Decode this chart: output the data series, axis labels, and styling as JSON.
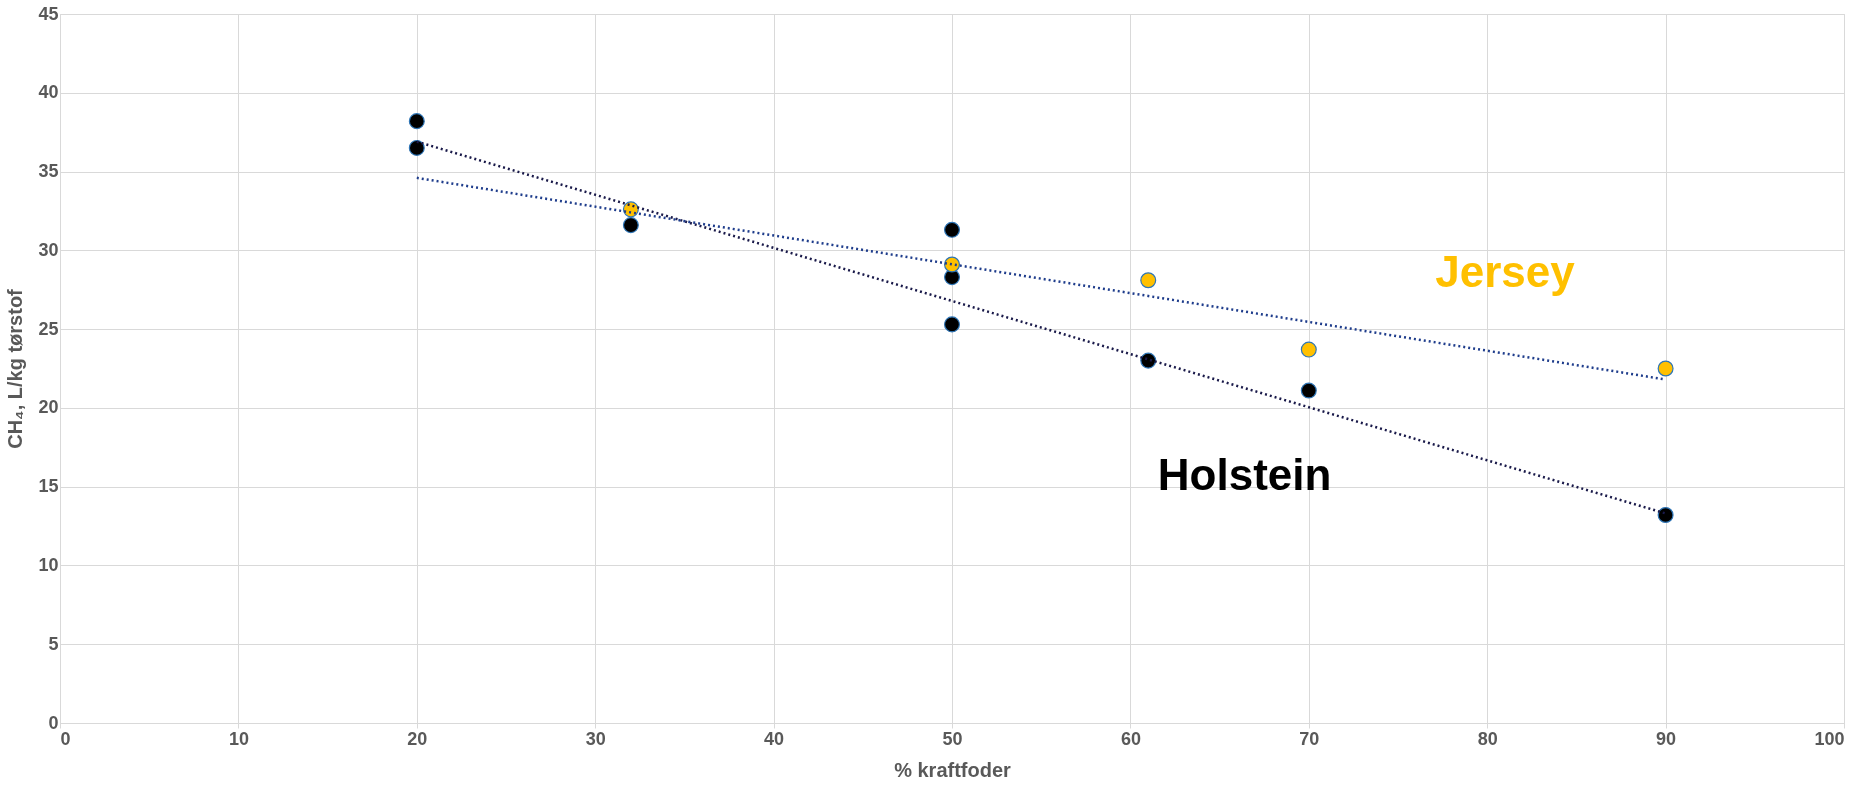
{
  "chart_data": {
    "type": "scatter",
    "xlabel": "% kraftfoder",
    "ylabel": "CH₄, L/kg tørstof",
    "xlim": [
      0,
      100
    ],
    "xticks": [
      0,
      10,
      20,
      30,
      40,
      50,
      60,
      70,
      80,
      90,
      100
    ],
    "ylim": [
      0,
      45
    ],
    "yticks": [
      0,
      5,
      10,
      15,
      20,
      25,
      30,
      35,
      40,
      45
    ],
    "grid": true,
    "marker": "circle",
    "series": [
      {
        "name": "Holstein",
        "color": "#000000",
        "x": [
          20,
          20,
          32,
          50,
          50,
          50,
          61,
          70,
          90
        ],
        "values": [
          38.2,
          36.5,
          31.6,
          31.3,
          28.3,
          25.3,
          23.0,
          21.1,
          13.2
        ]
      },
      {
        "name": "Jersey",
        "color": "#ffc000",
        "x": [
          32,
          50,
          61,
          70,
          90
        ],
        "values": [
          32.6,
          29.1,
          28.1,
          23.7,
          22.5
        ]
      },
      {
        "type": "line",
        "marker": "none",
        "color": "#1a1a4a",
        "line_style": "dotted",
        "x": [
          20,
          90
        ],
        "values": [
          36.9,
          13.3
        ]
      },
      {
        "type": "line",
        "marker": "none",
        "color": "#1f3d8c",
        "line_style": "dotted",
        "x": [
          20,
          90
        ],
        "values": [
          34.6,
          21.8
        ]
      }
    ]
  }
}
